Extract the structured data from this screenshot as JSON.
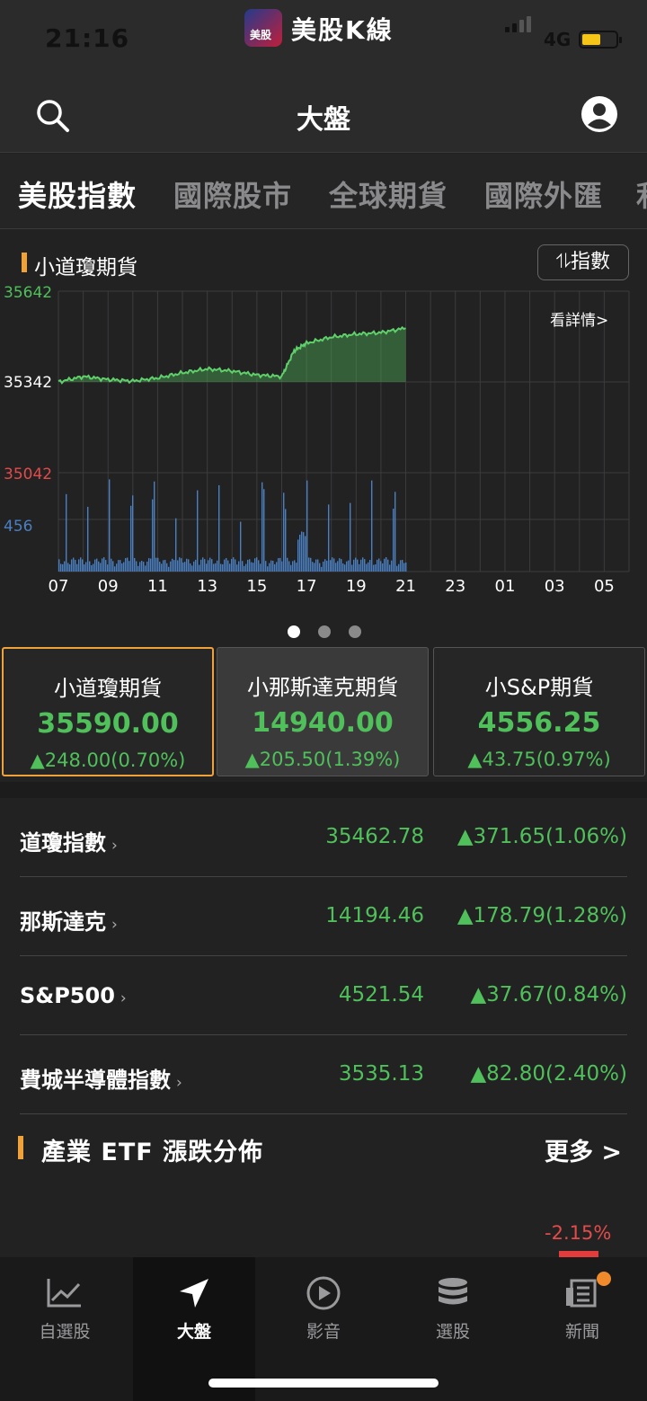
{
  "status": {
    "time": "21:16",
    "app_name": "美股K線",
    "app_badge": "美股",
    "network": "4G"
  },
  "header": {
    "title": "大盤"
  },
  "tabs": [
    "美股指數",
    "國際股市",
    "全球期貨",
    "國際外匯",
    "利"
  ],
  "chart": {
    "title": "小道瓊期貨",
    "index_button": "指數",
    "detail_link": "看詳情>",
    "y_labels": {
      "high": "35642",
      "mid": "35342",
      "low": "35042",
      "volume": "456"
    },
    "x_labels": [
      "07",
      "09",
      "11",
      "13",
      "15",
      "17",
      "19",
      "21",
      "23",
      "01",
      "03",
      "05"
    ],
    "colors": {
      "up": "#4fc05a",
      "down": "#e34b4b",
      "volume": "#4a7fc1",
      "accent": "#f0a23a"
    }
  },
  "chart_data": {
    "type": "area",
    "x": [
      "07",
      "08",
      "09",
      "10",
      "11",
      "12",
      "13",
      "14",
      "15",
      "16",
      "16.5",
      "17",
      "18",
      "19",
      "20",
      "21"
    ],
    "values": [
      35342,
      35360,
      35350,
      35345,
      35355,
      35372,
      35385,
      35378,
      35365,
      35360,
      35445,
      35470,
      35490,
      35500,
      35505,
      35520
    ],
    "ylim": [
      35042,
      35642
    ],
    "baseline": 35342
  },
  "cards": [
    {
      "name": "小道瓊期貨",
      "value": "35590.00",
      "change": "▲248.00(0.70%)"
    },
    {
      "name": "小那斯達克期貨",
      "value": "14940.00",
      "change": "▲205.50(1.39%)"
    },
    {
      "name": "小S&P期貨",
      "value": "4556.25",
      "change": "▲43.75(0.97%)"
    }
  ],
  "indices": [
    {
      "name": "道瓊指數",
      "value": "35462.78",
      "change": "▲371.65(1.06%)"
    },
    {
      "name": "那斯達克",
      "value": "14194.46",
      "change": "▲178.79(1.28%)"
    },
    {
      "name": "S&P500",
      "value": "4521.54",
      "change": "▲37.67(0.84%)"
    },
    {
      "name": "費城半導體指數",
      "value": "3535.13",
      "change": "▲82.80(2.40%)"
    }
  ],
  "etf": {
    "title": "產業 ETF 漲跌分佈",
    "more": "更多 >",
    "first_value": "-2.15%"
  },
  "tabbar": [
    "自選股",
    "大盤",
    "影音",
    "選股",
    "新聞"
  ]
}
